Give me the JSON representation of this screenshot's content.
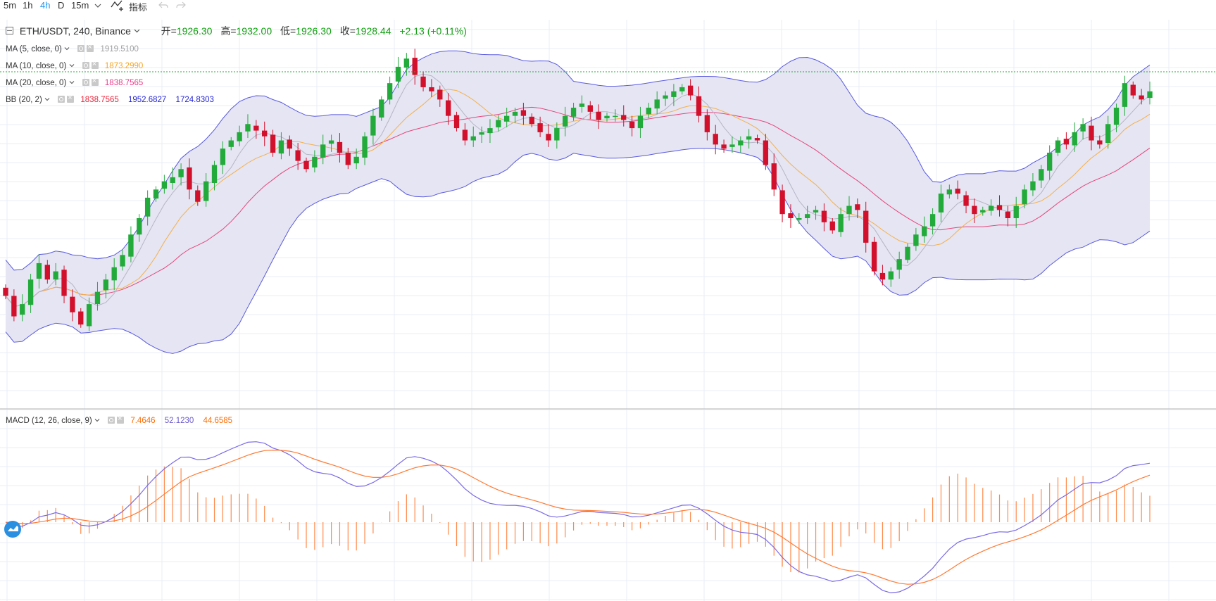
{
  "toolbar": {
    "intervals": [
      "5m",
      "1h",
      "4h",
      "D",
      "15m"
    ],
    "active_interval": "4h",
    "indicators_label": "指标"
  },
  "header": {
    "symbol": "ETH/USDT, 240, Binance",
    "open_label": "开=",
    "open": "1926.30",
    "high_label": "高=",
    "high": "1932.00",
    "low_label": "低=",
    "low": "1926.30",
    "close_label": "收=",
    "close": "1928.44",
    "change": "+2.13 (+0.11%)"
  },
  "indicators": {
    "ma5": {
      "label": "MA (5, close, 0)",
      "value": "1919.5100",
      "color": "#a0a0a0"
    },
    "ma10": {
      "label": "MA (10, close, 0)",
      "value": "1873.2990",
      "color": "#f5a623"
    },
    "ma20": {
      "label": "MA (20, close, 0)",
      "value": "1838.7565",
      "color": "#e83e8c"
    },
    "bb": {
      "label": "BB (20, 2)",
      "mid": "1838.7565",
      "upper": "1952.6827",
      "lower": "1724.8303",
      "mid_color": "#e8263b",
      "band_color": "#2626d6"
    },
    "macd": {
      "label": "MACD (12, 26, close, 9)",
      "hist": "7.4646",
      "macd": "52.1230",
      "signal": "44.6585",
      "hist_color": "#ff6a00",
      "macd_color": "#6a5acd",
      "signal_color": "#ff6a00"
    }
  },
  "colors": {
    "up": "#22ab3a",
    "down": "#d3102b",
    "band_fill": "#e5e5f3",
    "grid": "#e8eef5"
  },
  "chart_data": {
    "type": "candlestick",
    "close_seed": [
      1770,
      1745,
      1760,
      1790,
      1810,
      1790,
      1800,
      1770,
      1750,
      1735,
      1760,
      1775,
      1790,
      1805,
      1820,
      1845,
      1865,
      1890,
      1900,
      1910,
      1915,
      1925,
      1900,
      1885,
      1910,
      1930,
      1950,
      1960,
      1970,
      1980,
      1972,
      1965,
      1945,
      1960,
      1950,
      1935,
      1925,
      1940,
      1955,
      1960,
      1945,
      1930,
      1940,
      1965,
      1990,
      2010,
      2030,
      2050,
      2060,
      2040,
      2025,
      2020,
      2010,
      1990,
      1975,
      1960,
      1965,
      1970,
      1975,
      1985,
      1990,
      1995,
      1990,
      1980,
      1970,
      1960,
      1975,
      1990,
      2000,
      2005,
      1995,
      1985,
      1990,
      1990,
      1985,
      1975,
      1990,
      2000,
      2010,
      2015,
      2020,
      2025,
      2015,
      1990,
      1970,
      1955,
      1950,
      1955,
      1960,
      1965,
      1960,
      1930,
      1900,
      1870,
      1865,
      1865,
      1870,
      1875,
      1860,
      1850,
      1870,
      1880,
      1875,
      1835,
      1800,
      1790,
      1800,
      1815,
      1830,
      1845,
      1855,
      1870,
      1895,
      1900,
      1895,
      1880,
      1870,
      1875,
      1880,
      1875,
      1865,
      1880,
      1900,
      1910,
      1925,
      1945,
      1960,
      1955,
      1970,
      1980,
      1960,
      1955,
      1980,
      2000,
      2030,
      2015,
      2010,
      2020
    ]
  }
}
